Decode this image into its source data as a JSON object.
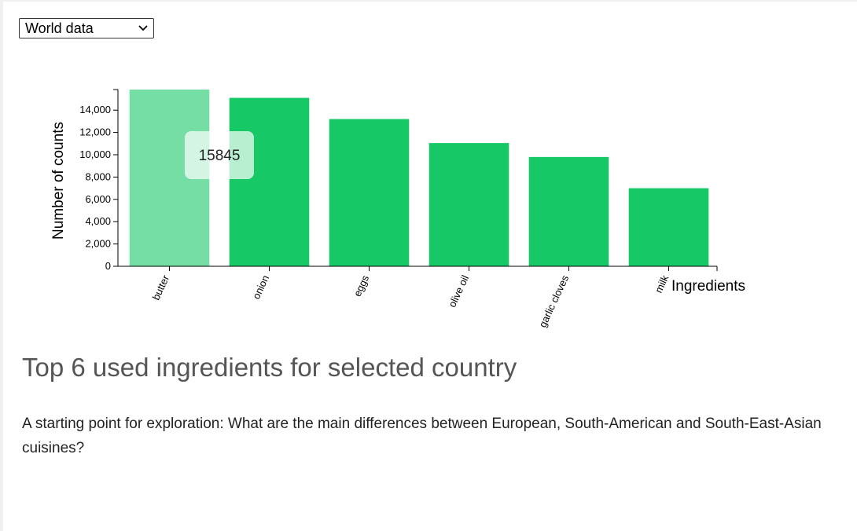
{
  "selector": {
    "value": "World data",
    "icon": "chevron-down-icon"
  },
  "chart_data": {
    "type": "bar",
    "categories": [
      "butter",
      "onion",
      "eggs",
      "olive oil",
      "garlic cloves",
      "milk"
    ],
    "values": [
      15845,
      15100,
      13200,
      11050,
      9800,
      7000
    ],
    "xlabel": "Ingredients",
    "ylabel": "Number of counts",
    "ylim": [
      0,
      15845
    ],
    "yticks": [
      0,
      2000,
      4000,
      6000,
      8000,
      10000,
      12000,
      14000
    ],
    "ytick_labels": [
      "0",
      "2,000",
      "4,000",
      "6,000",
      "8,000",
      "10,000",
      "12,000",
      "14,000"
    ],
    "highlighted_index": 0,
    "tooltip": "15845",
    "grid": false,
    "colors": {
      "bar": "#17c966",
      "bar_highlight": "#74deA4"
    }
  },
  "section_title": "Top 6 used ingredients for selected country",
  "description": "A starting point for exploration: What are the main differences between European, South-American and South-East-Asian cuisines?"
}
